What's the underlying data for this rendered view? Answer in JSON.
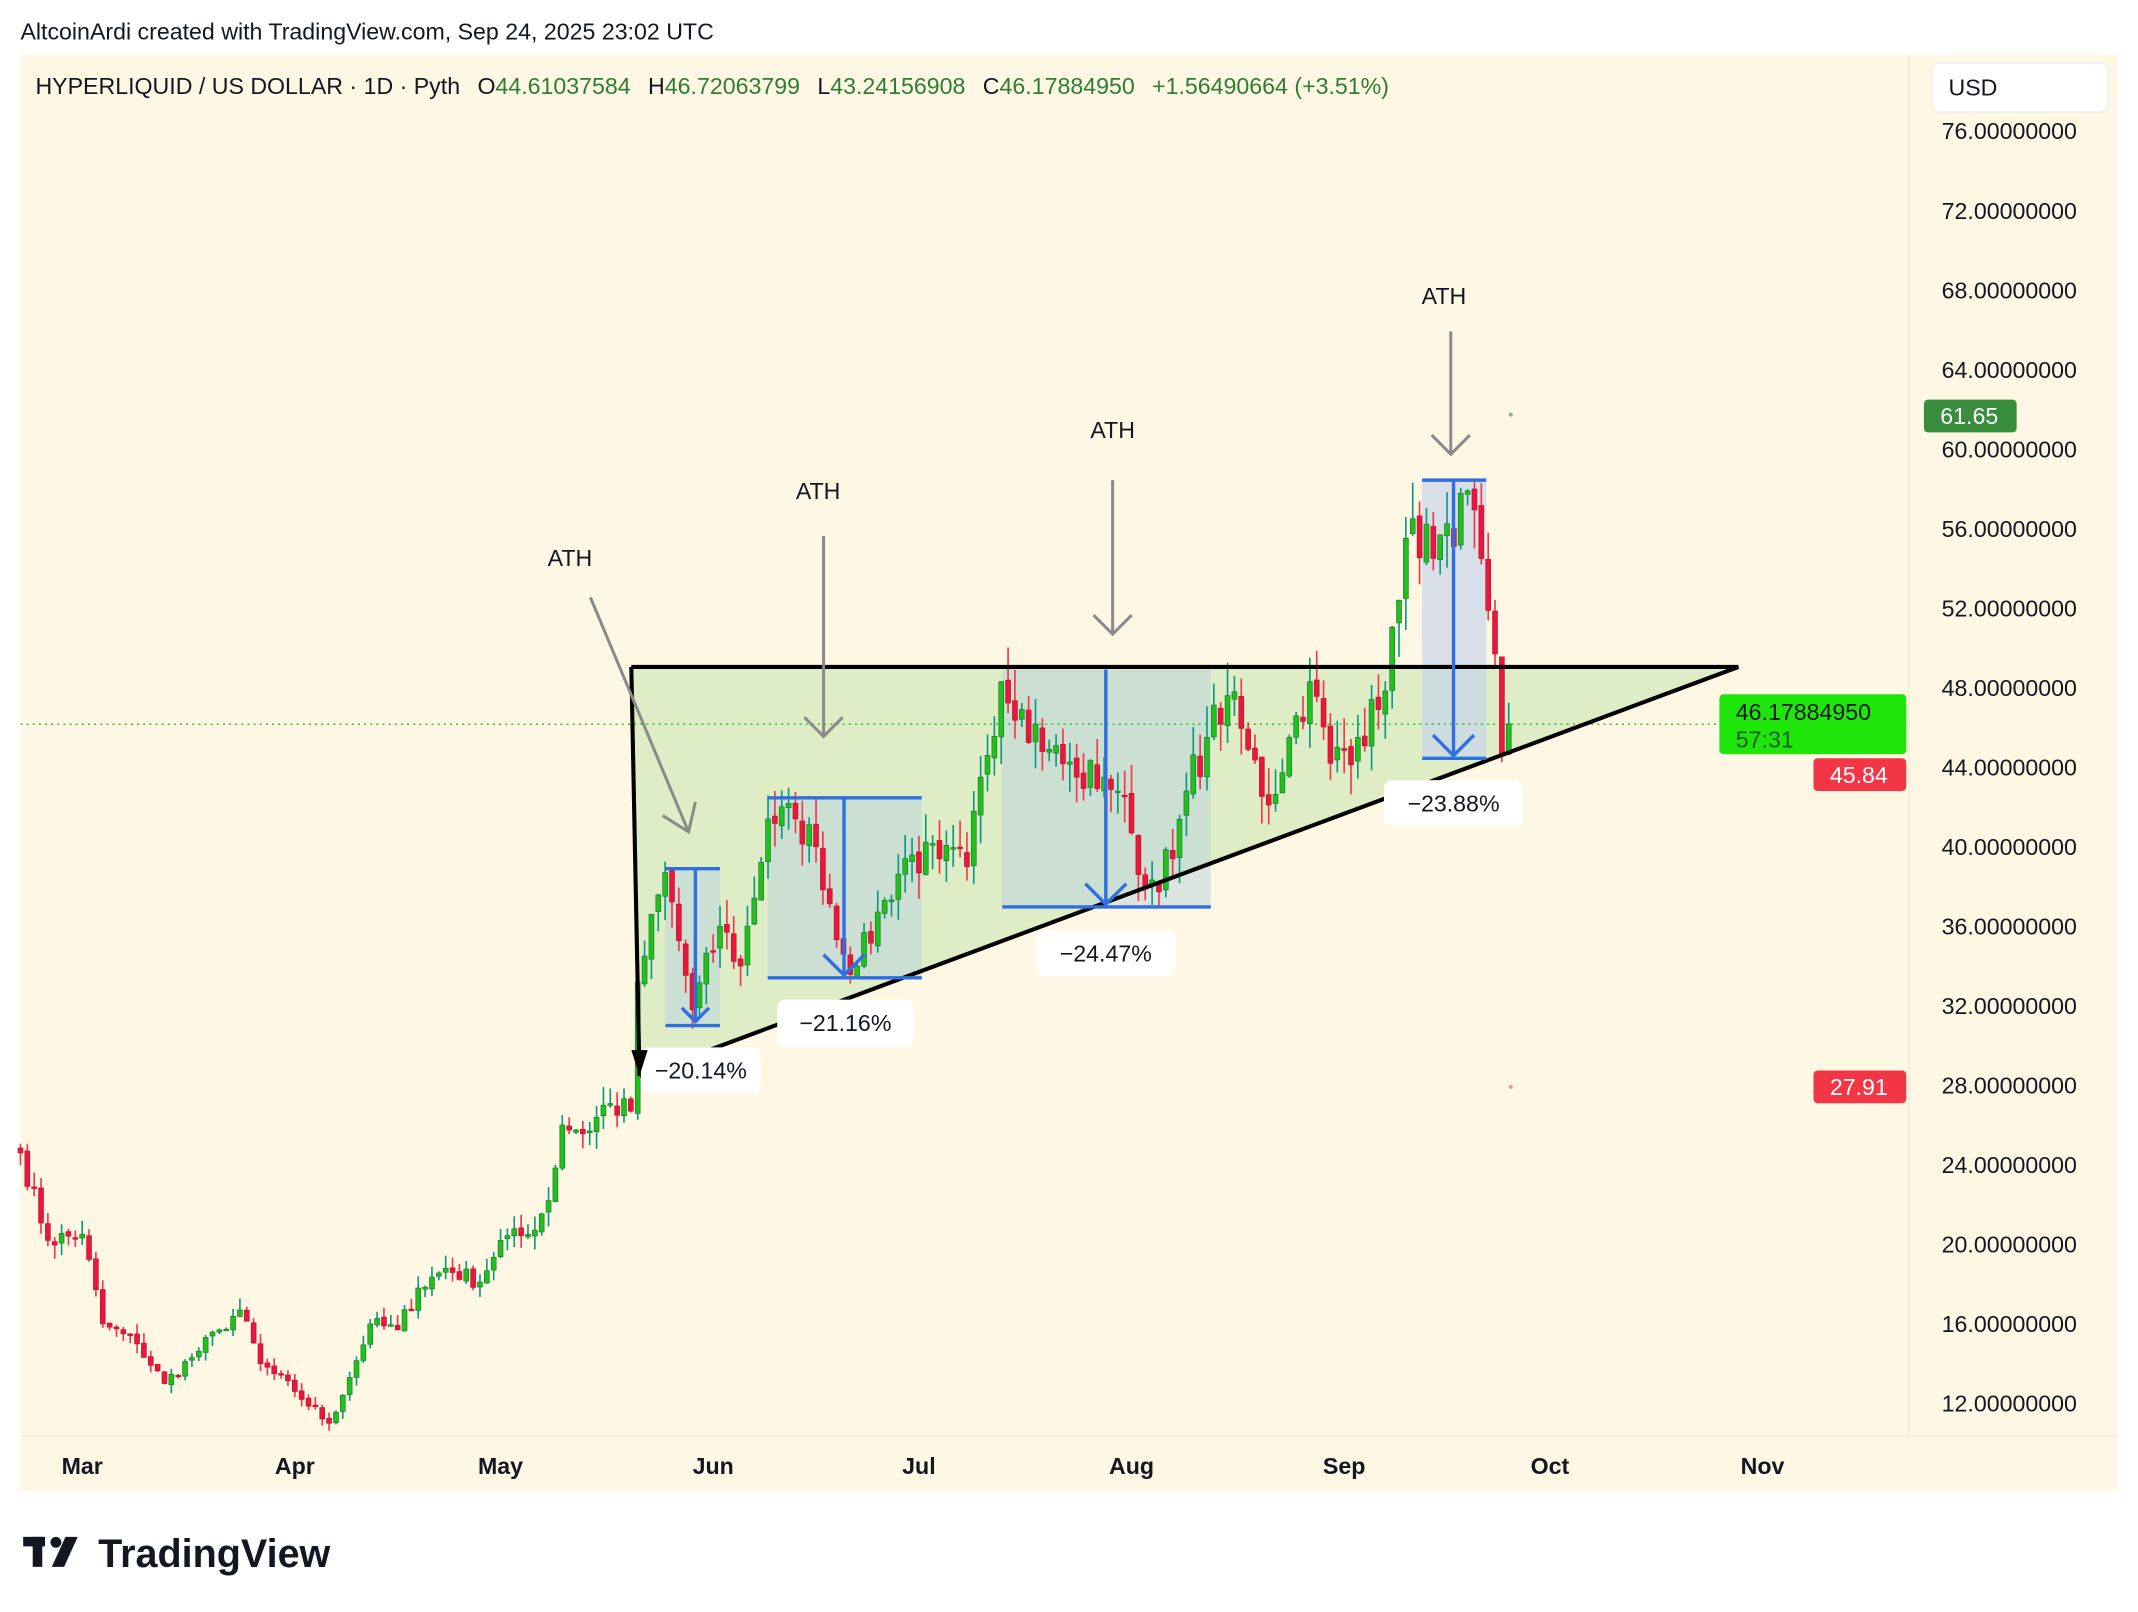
{
  "attribution": "AltcoinArdi created with TradingView.com, Sep 24, 2025 23:02 UTC",
  "legend": {
    "symbol": "HYPERLIQUID / US DOLLAR · 1D · Pyth",
    "o_label": "O",
    "o": "44.61037584",
    "h_label": "H",
    "h": "46.72063799",
    "l_label": "L",
    "l": "43.24156908",
    "c_label": "C",
    "c": "46.17884950",
    "change": "+1.56490664 (+3.51%)"
  },
  "currency": "USD",
  "price_labels": {
    "high_marker": "61.65",
    "last_price": "46.17884950",
    "countdown": "57:31",
    "prev_marker": "45.84",
    "low_marker": "27.91"
  },
  "annotations": {
    "ath": [
      "ATH",
      "ATH",
      "ATH",
      "ATH"
    ],
    "drawdowns": [
      "−20.14%",
      "−21.16%",
      "−24.47%",
      "−23.88%"
    ]
  },
  "watermark": "TradingView",
  "colors": {
    "up": "#22c01e",
    "down": "#e8173c",
    "up_wick": "#089981",
    "down_wick": "#f23645",
    "background": "#fdf7e4"
  },
  "chart_data": {
    "type": "candlestick",
    "title": "HYPERLIQUID / US DOLLAR · 1D · Pyth",
    "start_date": "2025-02-20",
    "ylim": [
      10.5,
      78
    ],
    "yticks": [
      "76.00000000",
      "72.00000000",
      "68.00000000",
      "64.00000000",
      "60.00000000",
      "56.00000000",
      "52.00000000",
      "48.00000000",
      "44.00000000",
      "40.00000000",
      "36.00000000",
      "32.00000000",
      "28.00000000",
      "24.00000000",
      "20.00000000",
      "16.00000000",
      "12.00000000"
    ],
    "ytick_values": [
      76,
      72,
      68,
      64,
      60,
      56,
      52,
      48,
      44,
      40,
      36,
      32,
      28,
      24,
      20,
      16,
      12
    ],
    "xticks": [
      "Mar",
      "Apr",
      "May",
      "Jun",
      "Jul",
      "Aug",
      "Sep",
      "Oct",
      "Nov"
    ],
    "xtick_days": [
      9,
      40,
      70,
      101,
      131,
      162,
      193,
      223,
      254
    ],
    "close_anchors_day_price": [
      [
        0,
        24.6
      ],
      [
        4,
        20.2
      ],
      [
        9,
        20.5
      ],
      [
        12,
        16
      ],
      [
        17,
        15
      ],
      [
        21,
        13
      ],
      [
        25,
        14.3
      ],
      [
        29,
        15.7
      ],
      [
        32,
        16.7
      ],
      [
        35,
        14
      ],
      [
        40,
        12.6
      ],
      [
        45,
        11
      ],
      [
        48,
        13.3
      ],
      [
        51,
        16
      ],
      [
        55,
        15.7
      ],
      [
        58,
        17.8
      ],
      [
        62,
        18.8
      ],
      [
        67,
        18.1
      ],
      [
        70,
        20.2
      ],
      [
        74,
        20.5
      ],
      [
        77,
        22.2
      ],
      [
        79,
        26
      ],
      [
        83,
        25.7
      ],
      [
        85,
        27
      ],
      [
        89,
        26.7
      ],
      [
        90,
        33.2
      ],
      [
        94,
        38.7
      ],
      [
        98,
        31.8
      ],
      [
        102,
        36
      ],
      [
        105,
        34
      ],
      [
        109,
        41.4
      ],
      [
        113,
        41.4
      ],
      [
        116,
        40
      ],
      [
        120,
        34.6
      ],
      [
        122,
        34
      ],
      [
        126,
        37.3
      ],
      [
        129,
        39.4
      ],
      [
        134,
        39.4
      ],
      [
        138,
        39
      ],
      [
        140,
        43.5
      ],
      [
        143,
        48.3
      ],
      [
        146,
        46.9
      ],
      [
        150,
        44.9
      ],
      [
        154,
        43.5
      ],
      [
        158,
        43.5
      ],
      [
        160,
        42.8
      ],
      [
        162,
        40.7
      ],
      [
        164,
        38
      ],
      [
        168,
        39.4
      ],
      [
        170,
        42.8
      ],
      [
        173,
        45.5
      ],
      [
        176,
        47.6
      ],
      [
        179,
        44.9
      ],
      [
        182,
        42.1
      ],
      [
        185,
        45.5
      ],
      [
        188,
        48.3
      ],
      [
        191,
        44.2
      ],
      [
        195,
        45.5
      ],
      [
        198,
        46.9
      ],
      [
        201,
        52.4
      ],
      [
        203,
        56.5
      ],
      [
        206,
        54.5
      ],
      [
        209,
        55.1
      ],
      [
        211,
        57.9
      ],
      [
        213,
        54.5
      ],
      [
        215,
        49.7
      ],
      [
        216,
        44.6
      ],
      [
        217,
        46.18
      ]
    ],
    "current_price": 46.1788495
  }
}
